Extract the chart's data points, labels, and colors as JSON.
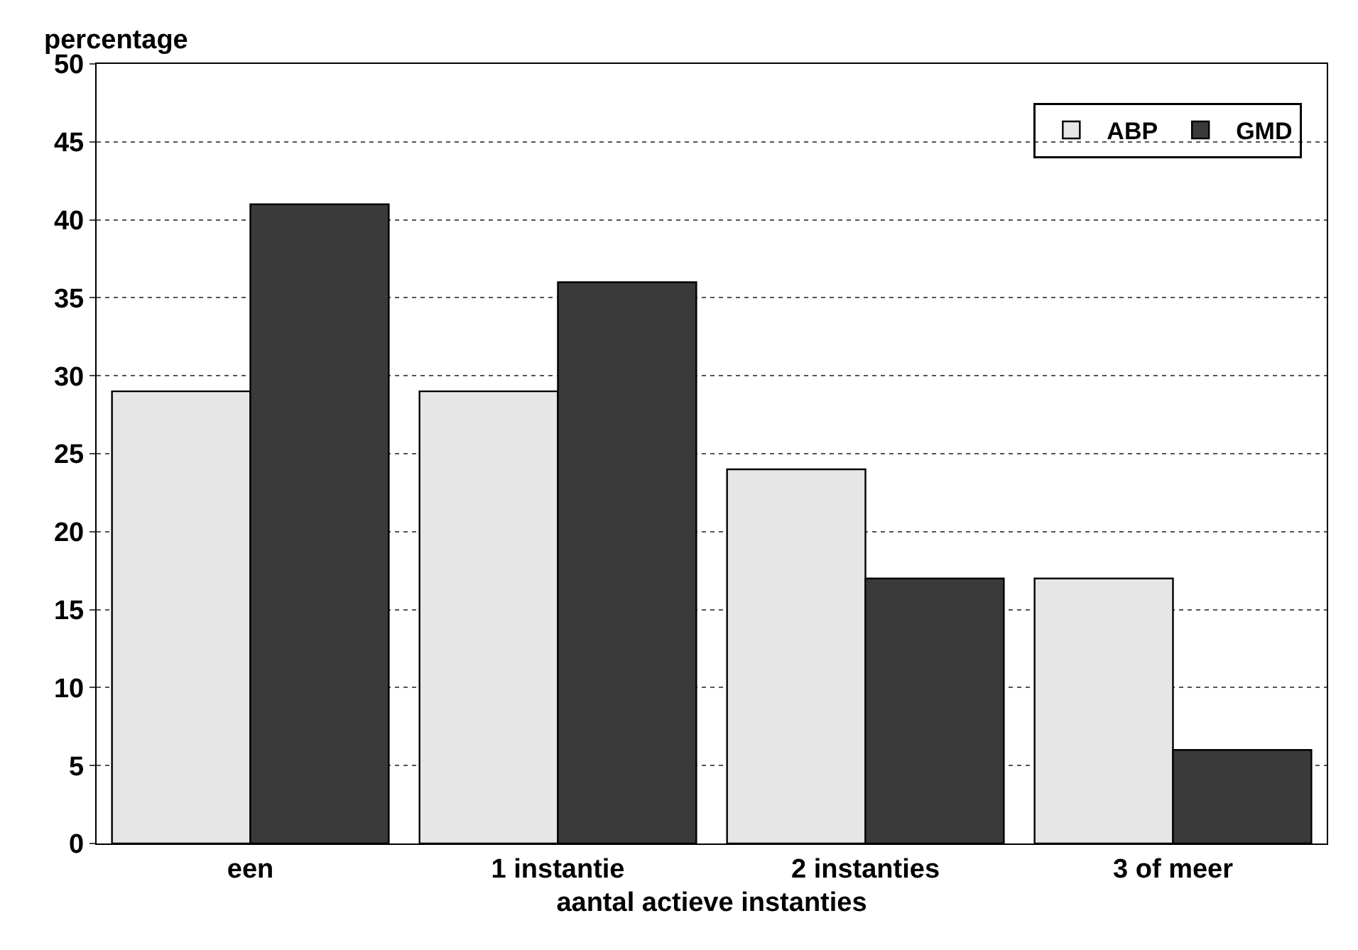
{
  "chart_data": {
    "type": "bar",
    "xlabel": "aantal actieve instanties",
    "ylabel": "percentage",
    "categories": [
      "een",
      "1 instantie",
      "2 instanties",
      "3 of meer"
    ],
    "series": [
      {
        "name": "ABP",
        "color": "#e6e6e6",
        "values": [
          29,
          29,
          24,
          17
        ]
      },
      {
        "name": "GMD",
        "color": "#3a3a3a",
        "values": [
          41,
          36,
          17,
          6
        ]
      }
    ],
    "ylim": [
      0,
      50
    ],
    "yticks": [
      0,
      5,
      10,
      15,
      20,
      25,
      30,
      35,
      40,
      45,
      50
    ],
    "grid": "y",
    "legend": "top right"
  }
}
